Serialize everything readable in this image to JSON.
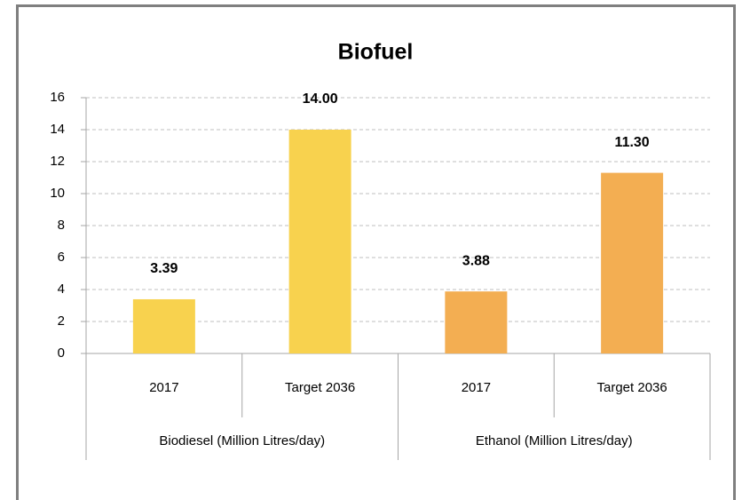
{
  "chart_data": {
    "type": "bar",
    "title": "Biofuel",
    "groups": [
      {
        "name": "Biodiesel (Million Litres/day)",
        "color": "#f8d24e",
        "categories": [
          "2017",
          "Target 2036"
        ],
        "values": [
          3.39,
          14.0
        ],
        "value_labels": [
          "3.39",
          "14.00"
        ]
      },
      {
        "name": "Ethanol (Million Litres/day)",
        "color": "#f3ae52",
        "categories": [
          "2017",
          "Target 2036"
        ],
        "values": [
          3.88,
          11.3
        ],
        "value_labels": [
          "3.88",
          "11.30"
        ]
      }
    ],
    "ylim": [
      0,
      16
    ],
    "yticks": [
      0,
      2,
      4,
      6,
      8,
      10,
      12,
      14,
      16
    ],
    "grid": true
  }
}
